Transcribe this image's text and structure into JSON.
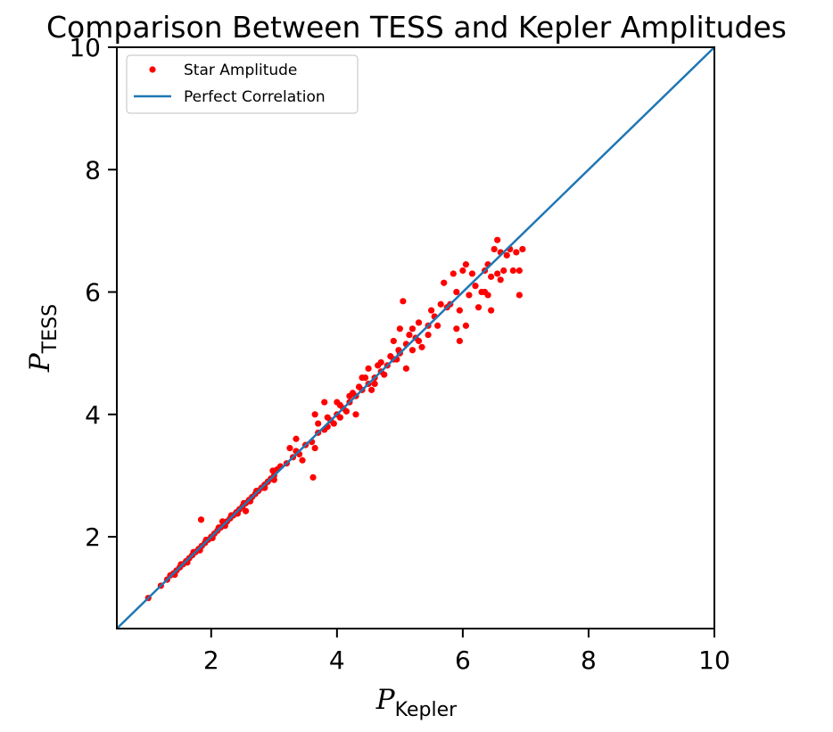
{
  "chart_data": {
    "type": "scatter",
    "title": "Comparison Between TESS and Kepler Amplitudes",
    "xlabel": {
      "main": "P",
      "sub": "Kepler"
    },
    "ylabel": {
      "main": "P",
      "sub": "TESS"
    },
    "xlim": [
      0.5,
      10
    ],
    "ylim": [
      0.5,
      10
    ],
    "xticks": [
      2,
      4,
      6,
      8,
      10
    ],
    "yticks": [
      2,
      4,
      6,
      8,
      10
    ],
    "grid": false,
    "legend": {
      "placement": "top-left",
      "entries": [
        {
          "label": "Star Amplitude",
          "kind": "marker",
          "color": "#ff0000"
        },
        {
          "label": "Perfect Correlation",
          "kind": "line",
          "color": "#1f77b4"
        }
      ]
    },
    "series": [
      {
        "name": "Star Amplitude",
        "kind": "scatter",
        "color": "#ff0000",
        "points": [
          [
            1.0,
            1.0
          ],
          [
            1.2,
            1.2
          ],
          [
            1.3,
            1.3
          ],
          [
            1.35,
            1.37
          ],
          [
            1.4,
            1.4
          ],
          [
            1.45,
            1.45
          ],
          [
            1.5,
            1.5
          ],
          [
            1.55,
            1.55
          ],
          [
            1.6,
            1.6
          ],
          [
            1.65,
            1.65
          ],
          [
            1.7,
            1.7
          ],
          [
            1.75,
            1.75
          ],
          [
            1.8,
            1.8
          ],
          [
            1.85,
            1.85
          ],
          [
            1.9,
            1.9
          ],
          [
            1.95,
            1.95
          ],
          [
            2.0,
            2.0
          ],
          [
            2.05,
            2.05
          ],
          [
            2.1,
            2.1
          ],
          [
            2.15,
            2.15
          ],
          [
            2.2,
            2.2
          ],
          [
            2.25,
            2.25
          ],
          [
            2.3,
            2.3
          ],
          [
            2.35,
            2.35
          ],
          [
            2.4,
            2.4
          ],
          [
            2.45,
            2.45
          ],
          [
            2.5,
            2.5
          ],
          [
            2.55,
            2.55
          ],
          [
            2.6,
            2.6
          ],
          [
            2.65,
            2.65
          ],
          [
            2.7,
            2.7
          ],
          [
            2.75,
            2.75
          ],
          [
            2.8,
            2.8
          ],
          [
            2.85,
            2.85
          ],
          [
            2.9,
            2.9
          ],
          [
            2.95,
            2.95
          ],
          [
            3.0,
            3.0
          ],
          [
            3.05,
            3.1
          ],
          [
            3.1,
            3.15
          ],
          [
            1.42,
            1.38
          ],
          [
            1.62,
            1.58
          ],
          [
            1.82,
            1.78
          ],
          [
            2.02,
            1.98
          ],
          [
            2.22,
            2.18
          ],
          [
            2.42,
            2.38
          ],
          [
            2.62,
            2.58
          ],
          [
            1.52,
            1.55
          ],
          [
            1.72,
            1.75
          ],
          [
            1.92,
            1.95
          ],
          [
            2.12,
            2.15
          ],
          [
            2.32,
            2.35
          ],
          [
            2.52,
            2.55
          ],
          [
            2.72,
            2.75
          ],
          [
            1.84,
            2.28
          ],
          [
            2.18,
            2.25
          ],
          [
            2.55,
            2.42
          ],
          [
            2.85,
            2.8
          ],
          [
            3.0,
            2.93
          ],
          [
            2.98,
            3.08
          ],
          [
            3.2,
            3.2
          ],
          [
            3.3,
            3.3
          ],
          [
            3.35,
            3.4
          ],
          [
            3.4,
            3.35
          ],
          [
            3.5,
            3.5
          ],
          [
            3.6,
            3.55
          ],
          [
            3.7,
            3.7
          ],
          [
            3.8,
            3.75
          ],
          [
            3.9,
            3.9
          ],
          [
            4.0,
            4.0
          ],
          [
            4.1,
            4.1
          ],
          [
            4.2,
            4.2
          ],
          [
            4.3,
            4.3
          ],
          [
            4.4,
            4.4
          ],
          [
            4.5,
            4.5
          ],
          [
            4.6,
            4.6
          ],
          [
            4.7,
            4.7
          ],
          [
            4.8,
            4.8
          ],
          [
            4.9,
            4.9
          ],
          [
            5.0,
            5.0
          ],
          [
            3.35,
            3.6
          ],
          [
            3.25,
            3.45
          ],
          [
            3.45,
            3.25
          ],
          [
            3.62,
            2.97
          ],
          [
            3.65,
            3.45
          ],
          [
            3.65,
            4.0
          ],
          [
            3.7,
            3.85
          ],
          [
            3.8,
            4.2
          ],
          [
            3.85,
            3.95
          ],
          [
            3.95,
            3.85
          ],
          [
            4.0,
            4.2
          ],
          [
            4.05,
            4.15
          ],
          [
            4.15,
            4.05
          ],
          [
            4.2,
            4.3
          ],
          [
            4.3,
            4.0
          ],
          [
            4.35,
            4.45
          ],
          [
            4.4,
            4.6
          ],
          [
            4.5,
            4.75
          ],
          [
            4.55,
            4.4
          ],
          [
            4.6,
            4.5
          ],
          [
            4.7,
            4.85
          ],
          [
            4.75,
            4.65
          ],
          [
            4.85,
            4.95
          ],
          [
            4.9,
            5.2
          ],
          [
            4.95,
            4.9
          ],
          [
            5.05,
            5.85
          ],
          [
            5.0,
            5.4
          ],
          [
            5.1,
            4.75
          ],
          [
            5.1,
            5.15
          ],
          [
            5.15,
            5.3
          ],
          [
            5.2,
            5.05
          ],
          [
            5.2,
            5.4
          ],
          [
            5.3,
            5.5
          ],
          [
            5.3,
            5.2
          ],
          [
            5.35,
            5.1
          ],
          [
            5.45,
            5.45
          ],
          [
            5.5,
            5.7
          ],
          [
            5.55,
            5.6
          ],
          [
            5.6,
            5.45
          ],
          [
            5.65,
            5.8
          ],
          [
            5.7,
            6.15
          ],
          [
            5.75,
            5.75
          ],
          [
            5.8,
            5.8
          ],
          [
            5.85,
            6.3
          ],
          [
            5.9,
            5.4
          ],
          [
            5.9,
            6.0
          ],
          [
            5.95,
            5.2
          ],
          [
            5.95,
            5.7
          ],
          [
            6.0,
            6.35
          ],
          [
            6.05,
            6.45
          ],
          [
            6.05,
            5.45
          ],
          [
            6.1,
            5.95
          ],
          [
            6.15,
            6.3
          ],
          [
            6.25,
            5.75
          ],
          [
            6.3,
            6.0
          ],
          [
            6.35,
            6.35
          ],
          [
            6.4,
            5.95
          ],
          [
            6.4,
            6.45
          ],
          [
            6.45,
            6.25
          ],
          [
            6.45,
            5.7
          ],
          [
            6.5,
            6.7
          ],
          [
            6.55,
            6.85
          ],
          [
            6.55,
            6.3
          ],
          [
            6.6,
            6.65
          ],
          [
            6.65,
            6.35
          ],
          [
            6.7,
            6.6
          ],
          [
            6.75,
            6.7
          ],
          [
            6.8,
            6.35
          ],
          [
            6.85,
            6.65
          ],
          [
            6.9,
            6.35
          ],
          [
            6.9,
            5.95
          ],
          [
            6.95,
            6.7
          ],
          [
            6.6,
            6.2
          ],
          [
            6.35,
            6.0
          ],
          [
            6.2,
            6.1
          ],
          [
            5.45,
            5.3
          ],
          [
            5.25,
            5.25
          ],
          [
            4.98,
            5.05
          ],
          [
            4.65,
            4.8
          ],
          [
            4.45,
            4.6
          ],
          [
            4.25,
            4.35
          ],
          [
            4.05,
            3.95
          ],
          [
            3.85,
            3.8
          ]
        ]
      },
      {
        "name": "Perfect Correlation",
        "kind": "line",
        "color": "#1f77b4",
        "x": [
          0.5,
          10
        ],
        "y": [
          0.5,
          10
        ]
      }
    ]
  }
}
